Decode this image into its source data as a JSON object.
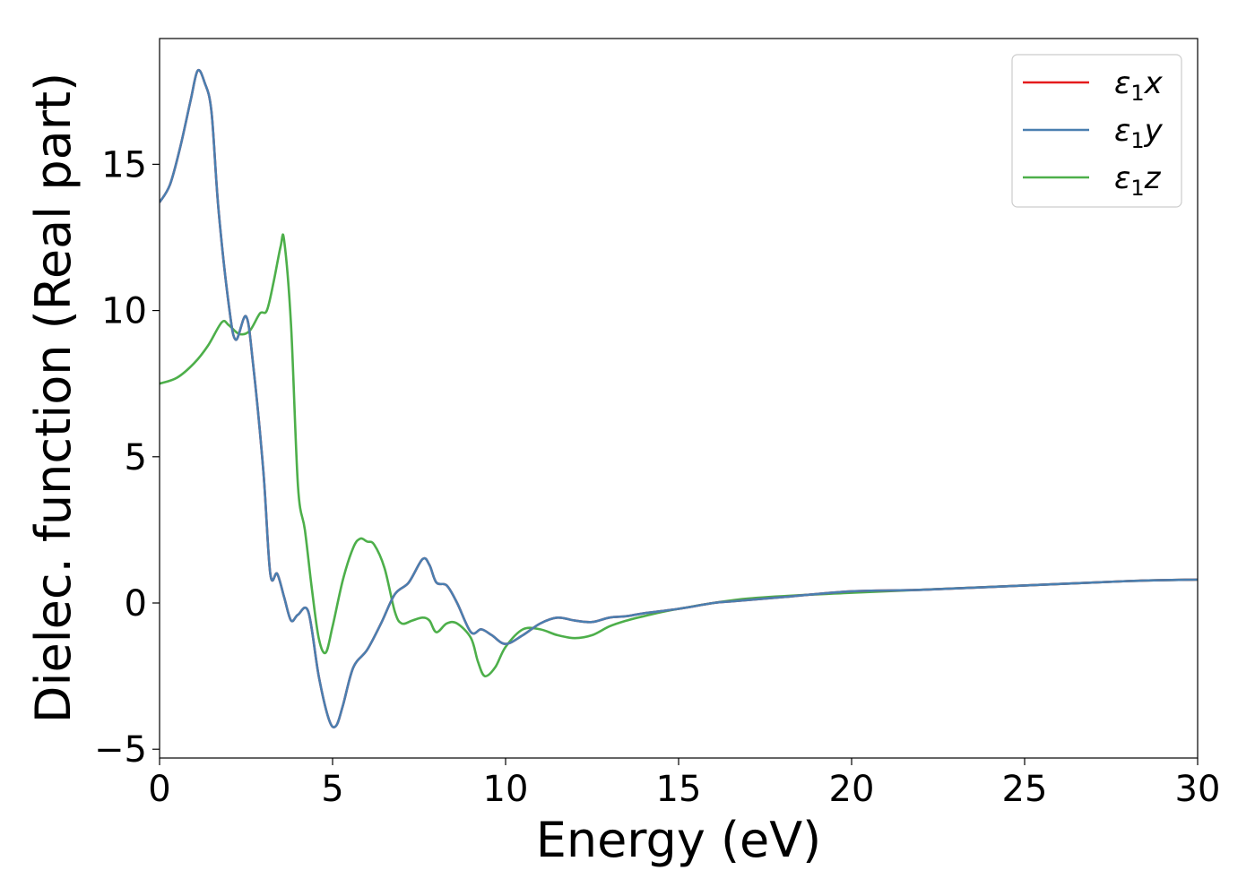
{
  "chart_data": {
    "type": "line",
    "title": "",
    "xlabel": "Energy (eV)",
    "ylabel": "Dielec. function (Real part)",
    "xlim": [
      0,
      30
    ],
    "ylim": [
      -5.3,
      19.3
    ],
    "xticks": [
      0,
      5,
      10,
      15,
      20,
      25,
      30
    ],
    "yticks": [
      -5,
      0,
      5,
      10,
      15
    ],
    "xtick_labels": [
      "0",
      "5",
      "10",
      "15",
      "20",
      "25",
      "30"
    ],
    "ytick_labels": [
      "−5",
      "0",
      "5",
      "10",
      "15"
    ],
    "grid": false,
    "legend_position": "top-right",
    "series": [
      {
        "name": "ε₁x",
        "legend": {
          "sym": "ε",
          "sub": "1",
          "var": "x"
        },
        "color": "#e41a1c",
        "x": [
          0,
          0.3,
          0.6,
          0.9,
          1.1,
          1.3,
          1.5,
          1.7,
          2.0,
          2.2,
          2.5,
          2.7,
          3.0,
          3.2,
          3.4,
          3.6,
          3.8,
          4.0,
          4.3,
          4.6,
          4.9,
          5.1,
          5.3,
          5.6,
          6.0,
          6.4,
          6.8,
          7.2,
          7.6,
          7.8,
          8.0,
          8.3,
          8.6,
          9.0,
          9.3,
          9.6,
          10.0,
          10.5,
          11.0,
          11.5,
          12.0,
          12.5,
          13.0,
          13.5,
          14.0,
          15.0,
          16.0,
          16.5,
          17.0,
          18.0,
          20.0,
          22.0,
          25.0,
          28.0,
          30.0
        ],
        "values": [
          13.7,
          14.3,
          15.6,
          17.2,
          18.2,
          17.8,
          16.8,
          13.5,
          10.2,
          9.0,
          9.8,
          8.2,
          4.5,
          1.0,
          1.0,
          0.2,
          -0.6,
          -0.4,
          -0.3,
          -2.5,
          -4.0,
          -4.2,
          -3.5,
          -2.2,
          -1.6,
          -0.7,
          0.3,
          0.7,
          1.5,
          1.3,
          0.7,
          0.6,
          0.0,
          -1.0,
          -0.9,
          -1.1,
          -1.4,
          -1.1,
          -0.7,
          -0.5,
          -0.6,
          -0.65,
          -0.5,
          -0.45,
          -0.35,
          -0.2,
          0.0,
          0.05,
          0.1,
          0.2,
          0.4,
          0.45,
          0.6,
          0.75,
          0.8
        ]
      },
      {
        "name": "ε₁y",
        "legend": {
          "sym": "ε",
          "sub": "1",
          "var": "y"
        },
        "color": "#4a7fb0",
        "x": [
          0,
          0.3,
          0.6,
          0.9,
          1.1,
          1.3,
          1.5,
          1.7,
          2.0,
          2.2,
          2.5,
          2.7,
          3.0,
          3.2,
          3.4,
          3.6,
          3.8,
          4.0,
          4.3,
          4.6,
          4.9,
          5.1,
          5.3,
          5.6,
          6.0,
          6.4,
          6.8,
          7.2,
          7.6,
          7.8,
          8.0,
          8.3,
          8.6,
          9.0,
          9.3,
          9.6,
          10.0,
          10.5,
          11.0,
          11.5,
          12.0,
          12.5,
          13.0,
          13.5,
          14.0,
          15.0,
          16.0,
          16.5,
          17.0,
          18.0,
          20.0,
          22.0,
          25.0,
          28.0,
          30.0
        ],
        "values": [
          13.7,
          14.3,
          15.6,
          17.2,
          18.2,
          17.8,
          16.8,
          13.5,
          10.2,
          9.0,
          9.8,
          8.2,
          4.5,
          1.0,
          1.0,
          0.2,
          -0.6,
          -0.4,
          -0.3,
          -2.5,
          -4.0,
          -4.2,
          -3.5,
          -2.2,
          -1.6,
          -0.7,
          0.3,
          0.7,
          1.5,
          1.3,
          0.7,
          0.6,
          0.0,
          -1.0,
          -0.9,
          -1.1,
          -1.4,
          -1.1,
          -0.7,
          -0.5,
          -0.6,
          -0.65,
          -0.5,
          -0.45,
          -0.35,
          -0.2,
          0.0,
          0.05,
          0.1,
          0.2,
          0.4,
          0.45,
          0.6,
          0.75,
          0.8
        ]
      },
      {
        "name": "ε₁z",
        "legend": {
          "sym": "ε",
          "sub": "1",
          "var": "z"
        },
        "color": "#4daf4a",
        "x": [
          0,
          0.5,
          1.0,
          1.4,
          1.8,
          2.0,
          2.3,
          2.6,
          2.9,
          3.1,
          3.3,
          3.5,
          3.6,
          3.8,
          4.0,
          4.2,
          4.4,
          4.6,
          4.8,
          5.0,
          5.3,
          5.6,
          5.8,
          6.0,
          6.2,
          6.5,
          6.8,
          7.0,
          7.3,
          7.6,
          7.8,
          8.0,
          8.3,
          8.6,
          9.0,
          9.2,
          9.4,
          9.7,
          10.0,
          10.5,
          11.0,
          11.5,
          12.0,
          12.5,
          13.0,
          13.5,
          14.0,
          15.0,
          17.0,
          20.0,
          25.0,
          28.0,
          30.0
        ],
        "values": [
          7.5,
          7.7,
          8.2,
          8.8,
          9.6,
          9.5,
          9.2,
          9.3,
          9.9,
          10.0,
          11.0,
          12.2,
          12.4,
          9.5,
          4.0,
          2.5,
          0.5,
          -1.2,
          -1.7,
          -0.8,
          0.8,
          1.9,
          2.2,
          2.1,
          2.0,
          1.2,
          -0.3,
          -0.7,
          -0.6,
          -0.5,
          -0.6,
          -1.0,
          -0.7,
          -0.7,
          -1.2,
          -2.0,
          -2.5,
          -2.2,
          -1.5,
          -0.9,
          -0.9,
          -1.1,
          -1.2,
          -1.1,
          -0.8,
          -0.6,
          -0.45,
          -0.2,
          0.15,
          0.35,
          0.6,
          0.75,
          0.8
        ]
      }
    ]
  }
}
